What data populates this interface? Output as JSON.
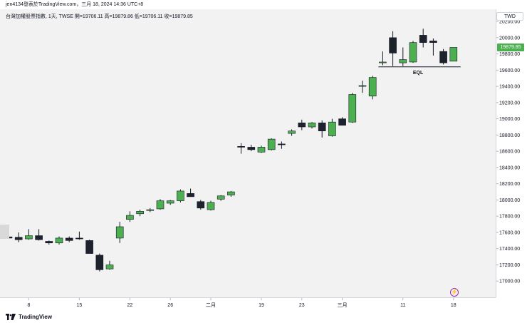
{
  "header": {
    "caption": "jen4134發表於TradingView.com，三月 18, 2024 14:36 UTC+8",
    "legend": "台灣加權股票指數, 1天, TWSE  開=19706.11  高=19879.86  低=19706.11  收=19879.85"
  },
  "currency": "TWD",
  "last_price_tag": "19879.85",
  "annotation": {
    "label": "EQL",
    "price": 19640
  },
  "footer": {
    "brand": "TradingView"
  },
  "colors": {
    "up": "#4caf50",
    "down": "#1e222d",
    "tag": "#4caf50",
    "accent": "#9c27b0"
  },
  "chart_data": {
    "type": "candlestick",
    "ylim": [
      16800,
      20350
    ],
    "y_ticks": [
      17000,
      17200,
      17400,
      17600,
      17800,
      18000,
      18200,
      18400,
      18600,
      18800,
      19000,
      19200,
      19400,
      19600,
      19800,
      20000,
      20200
    ],
    "x_ticks": [
      {
        "index": 2,
        "label": "8"
      },
      {
        "index": 7,
        "label": "15"
      },
      {
        "index": 12,
        "label": "22"
      },
      {
        "index": 16,
        "label": "26"
      },
      {
        "index": 20,
        "label": "二月"
      },
      {
        "index": 25,
        "label": "19"
      },
      {
        "index": 29,
        "label": "23"
      },
      {
        "index": 33,
        "label": "三月"
      },
      {
        "index": 39,
        "label": "11"
      },
      {
        "index": 44,
        "label": "18"
      }
    ],
    "candles": [
      {
        "o": 17545,
        "h": 17570,
        "l": 17520,
        "c": 17530
      },
      {
        "o": 17540,
        "h": 17600,
        "l": 17480,
        "c": 17510
      },
      {
        "o": 17520,
        "h": 17640,
        "l": 17510,
        "c": 17560
      },
      {
        "o": 17560,
        "h": 17640,
        "l": 17500,
        "c": 17510
      },
      {
        "o": 17490,
        "h": 17500,
        "l": 17450,
        "c": 17470
      },
      {
        "o": 17470,
        "h": 17550,
        "l": 17450,
        "c": 17530
      },
      {
        "o": 17530,
        "h": 17550,
        "l": 17480,
        "c": 17500
      },
      {
        "o": 17530,
        "h": 17610,
        "l": 17510,
        "c": 17520
      },
      {
        "o": 17500,
        "h": 17510,
        "l": 17340,
        "c": 17340
      },
      {
        "o": 17320,
        "h": 17340,
        "l": 17120,
        "c": 17140
      },
      {
        "o": 17150,
        "h": 17250,
        "l": 17140,
        "c": 17200
      },
      {
        "o": 17530,
        "h": 17730,
        "l": 17470,
        "c": 17670
      },
      {
        "o": 17760,
        "h": 17860,
        "l": 17730,
        "c": 17810
      },
      {
        "o": 17830,
        "h": 17880,
        "l": 17800,
        "c": 17860
      },
      {
        "o": 17870,
        "h": 17900,
        "l": 17850,
        "c": 17880
      },
      {
        "o": 17890,
        "h": 18010,
        "l": 17880,
        "c": 17990
      },
      {
        "o": 17960,
        "h": 18000,
        "l": 17940,
        "c": 17990
      },
      {
        "o": 17990,
        "h": 18130,
        "l": 17970,
        "c": 18110
      },
      {
        "o": 18080,
        "h": 18140,
        "l": 18040,
        "c": 18040
      },
      {
        "o": 17980,
        "h": 18000,
        "l": 17880,
        "c": 17900
      },
      {
        "o": 17880,
        "h": 17990,
        "l": 17870,
        "c": 17970
      },
      {
        "o": 18010,
        "h": 18060,
        "l": 17990,
        "c": 18050
      },
      {
        "o": 18060,
        "h": 18110,
        "l": 18040,
        "c": 18100
      },
      {
        "o": 18660,
        "h": 18700,
        "l": 18570,
        "c": 18650
      },
      {
        "o": 18650,
        "h": 18680,
        "l": 18600,
        "c": 18620
      },
      {
        "o": 18590,
        "h": 18670,
        "l": 18580,
        "c": 18650
      },
      {
        "o": 18620,
        "h": 18760,
        "l": 18610,
        "c": 18750
      },
      {
        "o": 18690,
        "h": 18720,
        "l": 18630,
        "c": 18680
      },
      {
        "o": 18820,
        "h": 18870,
        "l": 18790,
        "c": 18850
      },
      {
        "o": 18950,
        "h": 18990,
        "l": 18860,
        "c": 18900
      },
      {
        "o": 18900,
        "h": 18960,
        "l": 18880,
        "c": 18950
      },
      {
        "o": 18950,
        "h": 18980,
        "l": 18770,
        "c": 18850
      },
      {
        "o": 18790,
        "h": 19000,
        "l": 18780,
        "c": 18960
      },
      {
        "o": 19000,
        "h": 19020,
        "l": 18920,
        "c": 18920
      },
      {
        "o": 18960,
        "h": 19320,
        "l": 18950,
        "c": 19300
      },
      {
        "o": 19400,
        "h": 19470,
        "l": 19320,
        "c": 19410
      },
      {
        "o": 19280,
        "h": 19530,
        "l": 19240,
        "c": 19510
      },
      {
        "o": 19690,
        "h": 19830,
        "l": 19660,
        "c": 19700
      },
      {
        "o": 20000,
        "h": 20080,
        "l": 19650,
        "c": 19810
      },
      {
        "o": 19690,
        "h": 19880,
        "l": 19650,
        "c": 19730
      },
      {
        "o": 19700,
        "h": 19960,
        "l": 19690,
        "c": 19940
      },
      {
        "o": 20030,
        "h": 20110,
        "l": 19880,
        "c": 19940
      },
      {
        "o": 19960,
        "h": 19990,
        "l": 19780,
        "c": 19940
      },
      {
        "o": 19830,
        "h": 19860,
        "l": 19670,
        "c": 19690
      },
      {
        "o": 19710,
        "h": 19880,
        "l": 19710,
        "c": 19880
      }
    ]
  }
}
